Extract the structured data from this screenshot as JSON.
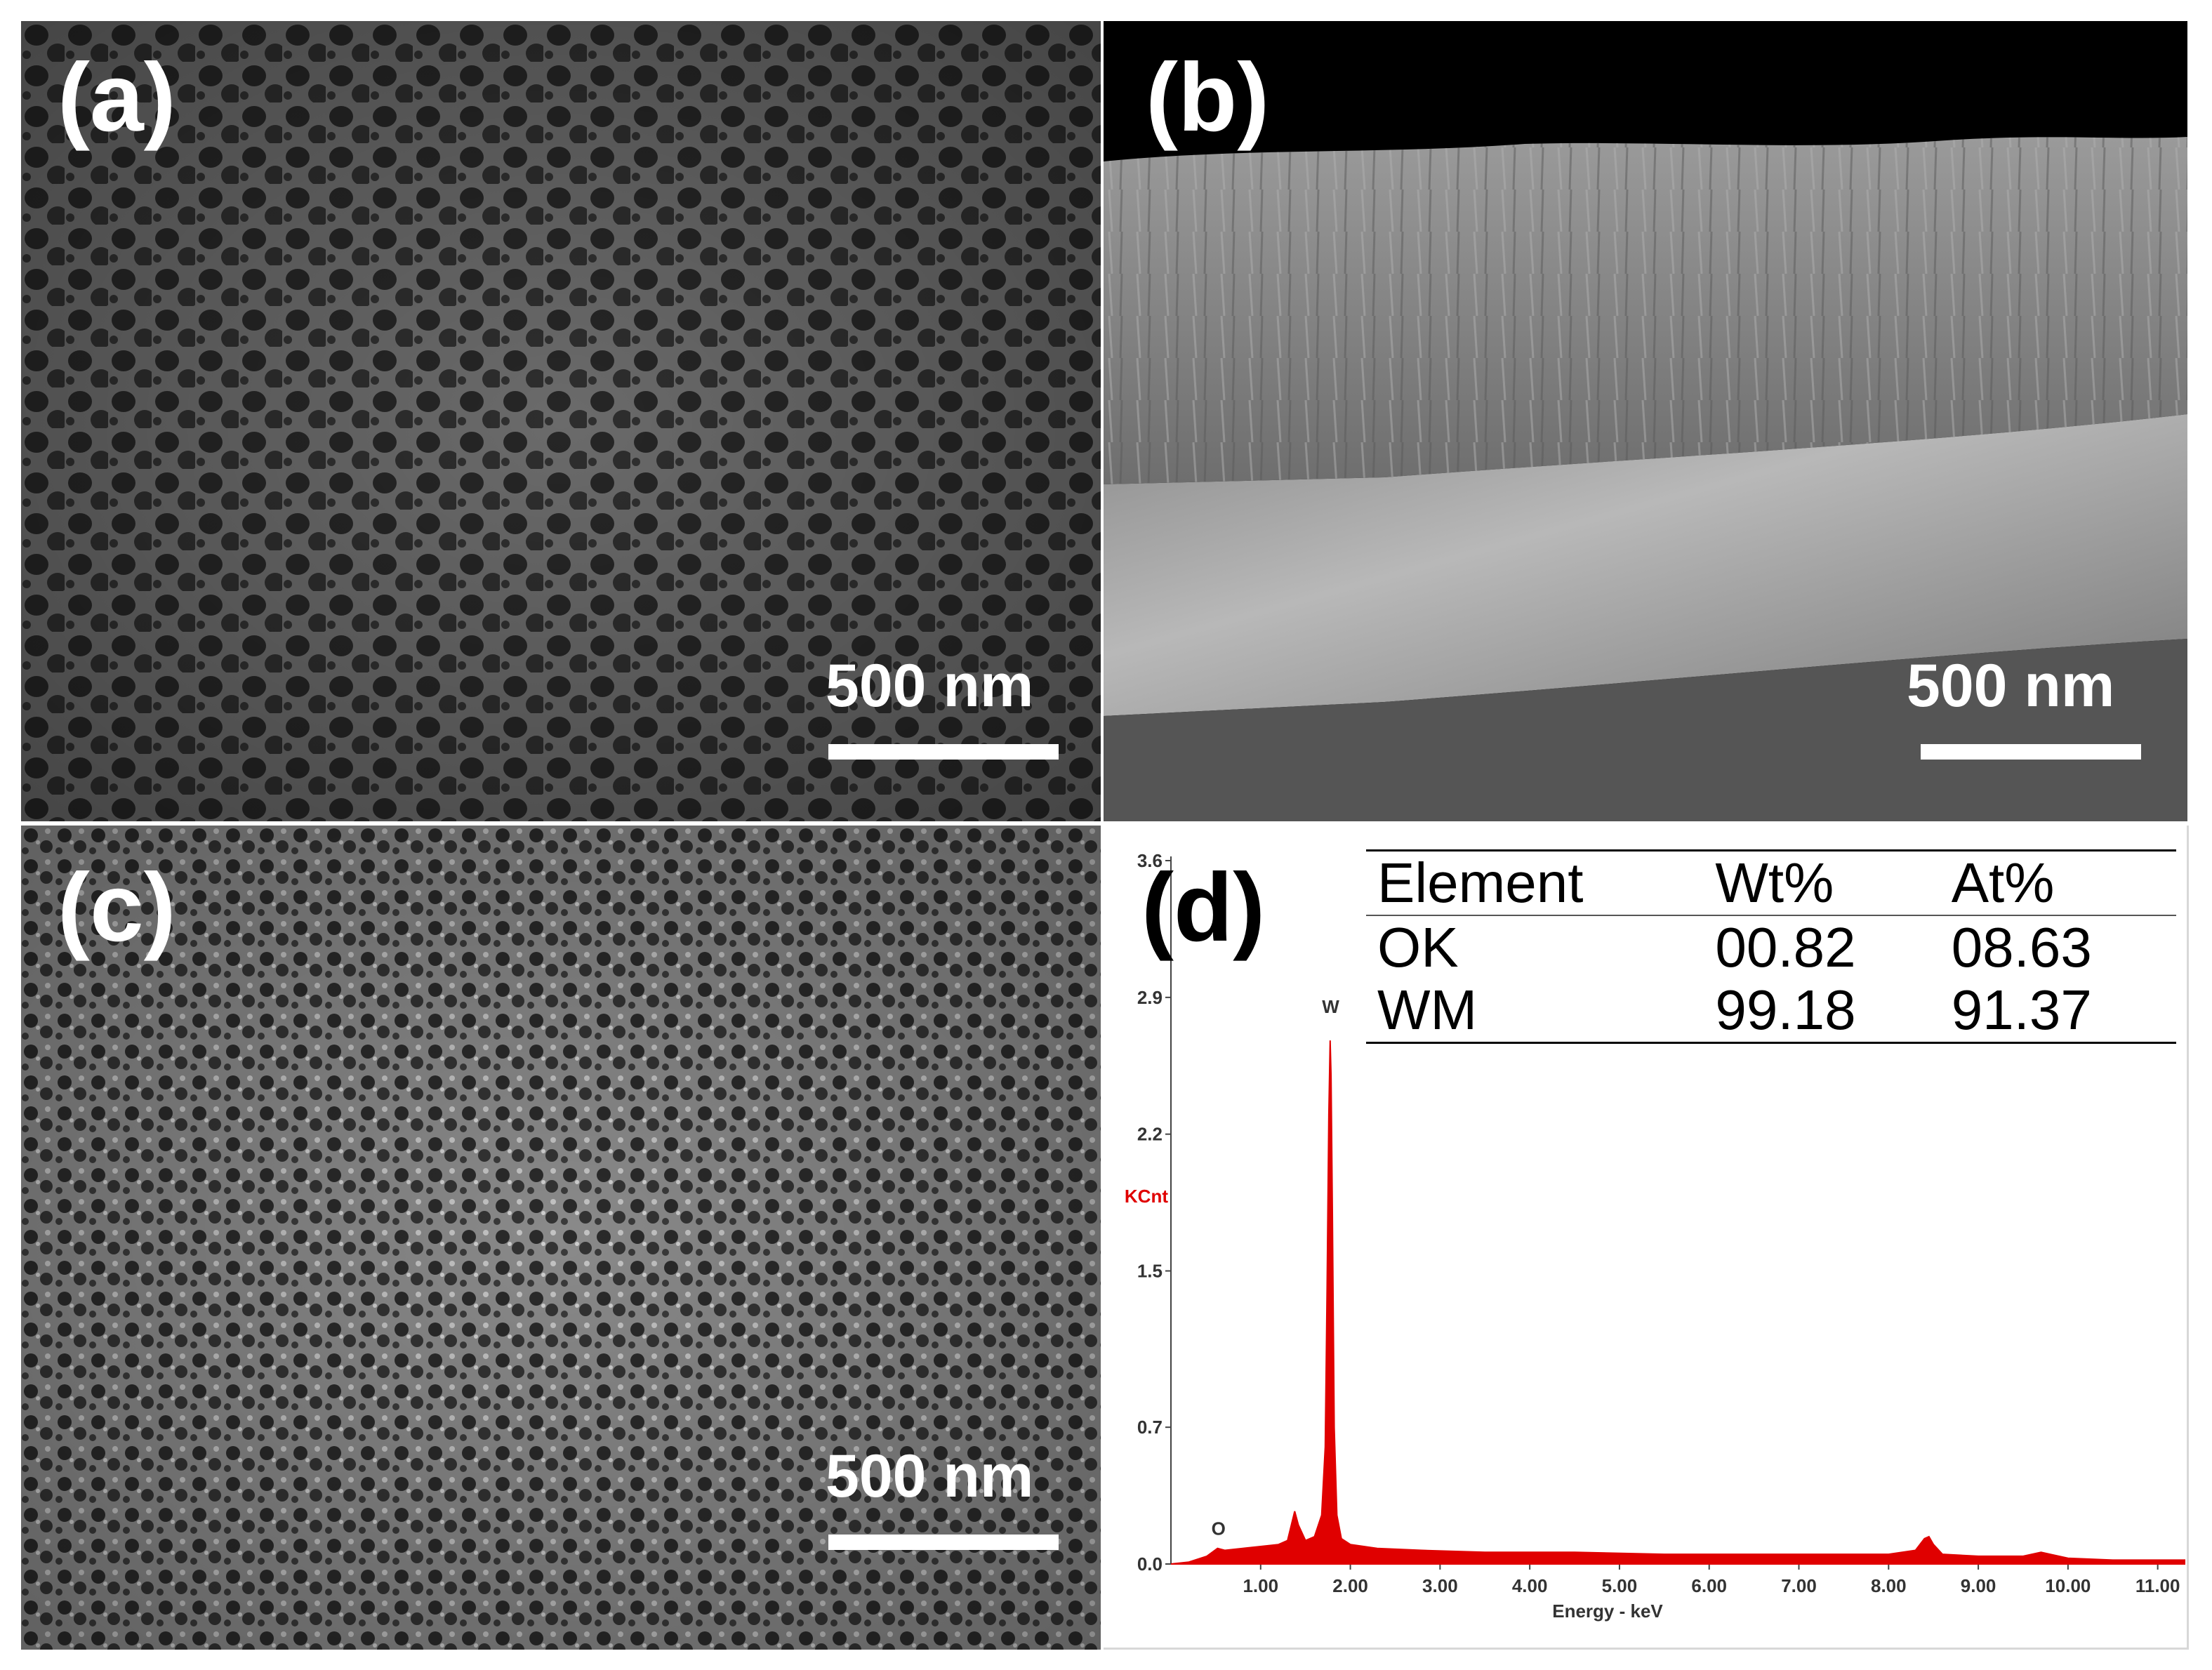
{
  "panels": {
    "a": {
      "label": "(a)",
      "scale_bar": "500 nm"
    },
    "b": {
      "label": "(b)",
      "scale_bar": "500 nm"
    },
    "c": {
      "label": "(c)",
      "scale_bar": "500 nm"
    },
    "d": {
      "label": "(d)"
    }
  },
  "eds_table": {
    "headers": [
      "Element",
      "Wt%",
      "At%"
    ],
    "rows": [
      [
        "OK",
        "00.82",
        "08.63"
      ],
      [
        "WM",
        "99.18",
        "91.37"
      ]
    ]
  },
  "chart_data": {
    "type": "line",
    "xlabel": "Energy - keV",
    "ylabel": "KCnt",
    "xlim": [
      0,
      11.3
    ],
    "ylim": [
      0,
      3.6
    ],
    "x_ticks": [
      "1.00",
      "2.00",
      "3.00",
      "4.00",
      "5.00",
      "6.00",
      "7.00",
      "8.00",
      "9.00",
      "10.00",
      "11.00"
    ],
    "y_ticks": [
      "0.0",
      "0.7",
      "1.5",
      "2.2",
      "2.9",
      "3.6"
    ],
    "annotations": [
      {
        "text": "O",
        "x": 0.53,
        "y": 0.15
      },
      {
        "text": "W",
        "x": 1.78,
        "y": 2.82
      }
    ],
    "series": [
      {
        "color": "#e00000",
        "x": [
          0.0,
          0.2,
          0.4,
          0.52,
          0.6,
          0.8,
          1.0,
          1.2,
          1.3,
          1.38,
          1.42,
          1.5,
          1.6,
          1.68,
          1.72,
          1.74,
          1.76,
          1.775,
          1.785,
          1.8,
          1.82,
          1.85,
          1.9,
          2.0,
          2.3,
          2.8,
          3.5,
          4.5,
          5.5,
          6.5,
          7.5,
          8.0,
          8.3,
          8.4,
          8.45,
          8.5,
          8.6,
          9.0,
          9.5,
          9.7,
          9.8,
          10.0,
          10.5,
          11.3
        ],
        "y": [
          0.0,
          0.01,
          0.04,
          0.08,
          0.07,
          0.08,
          0.09,
          0.1,
          0.12,
          0.27,
          0.2,
          0.12,
          0.14,
          0.25,
          0.6,
          1.4,
          2.3,
          2.68,
          2.5,
          1.8,
          0.7,
          0.25,
          0.13,
          0.1,
          0.08,
          0.07,
          0.06,
          0.06,
          0.05,
          0.05,
          0.05,
          0.05,
          0.07,
          0.13,
          0.14,
          0.1,
          0.05,
          0.04,
          0.04,
          0.06,
          0.05,
          0.03,
          0.02,
          0.02
        ]
      }
    ]
  }
}
